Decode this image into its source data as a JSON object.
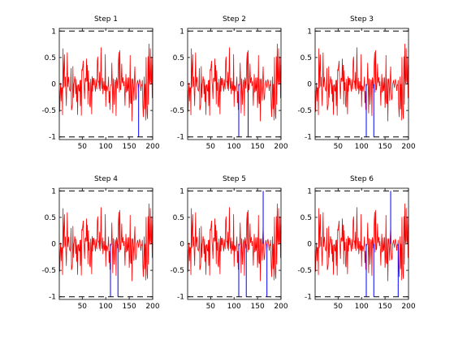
{
  "colors": {
    "background": "#ffffff",
    "signal": "#ff0000",
    "selected": "#0000ff",
    "bound": "#000000",
    "axes": "#000000"
  },
  "chart_data": [
    {
      "type": "line",
      "title": "Step 1",
      "xlim": [
        1,
        200
      ],
      "ylim": [
        -1.05,
        1.05
      ],
      "xticks": [
        50,
        100,
        150,
        200
      ],
      "yticks": [
        -1,
        -0.5,
        0,
        0.5,
        1
      ],
      "bounds": [
        1,
        -1
      ],
      "highlighted": [
        {
          "x": 170,
          "y": -1
        }
      ]
    },
    {
      "type": "line",
      "title": "Step 2",
      "xlim": [
        1,
        200
      ],
      "ylim": [
        -1.05,
        1.05
      ],
      "xticks": [
        50,
        100,
        150,
        200
      ],
      "yticks": [
        -1,
        -0.5,
        0,
        0.5,
        1
      ],
      "bounds": [
        1,
        -1
      ],
      "highlighted": [
        {
          "x": 110,
          "y": -1
        },
        {
          "x": 130,
          "y": -1
        }
      ]
    },
    {
      "type": "line",
      "title": "Step 3",
      "xlim": [
        1,
        200
      ],
      "ylim": [
        -1.05,
        1.05
      ],
      "xticks": [
        50,
        100,
        150,
        200
      ],
      "yticks": [
        -1,
        -0.5,
        0,
        0.5,
        1
      ],
      "bounds": [
        1,
        -1
      ],
      "highlighted": [
        {
          "x": 110,
          "y": -1
        },
        {
          "x": 126,
          "y": -1
        }
      ]
    },
    {
      "type": "line",
      "title": "Step 4",
      "xlim": [
        1,
        200
      ],
      "ylim": [
        -1.05,
        1.05
      ],
      "xticks": [
        50,
        100,
        150,
        200
      ],
      "yticks": [
        -1,
        -0.5,
        0,
        0.5,
        1
      ],
      "bounds": [
        1,
        -1
      ],
      "highlighted": [
        {
          "x": 110,
          "y": -1
        },
        {
          "x": 126,
          "y": -1
        }
      ]
    },
    {
      "type": "line",
      "title": "Step 5",
      "xlim": [
        1,
        200
      ],
      "ylim": [
        -1.05,
        1.05
      ],
      "xticks": [
        50,
        100,
        150,
        200
      ],
      "yticks": [
        -1,
        -0.5,
        0,
        0.5,
        1
      ],
      "bounds": [
        1,
        -1
      ],
      "highlighted": [
        {
          "x": 110,
          "y": -1
        },
        {
          "x": 126,
          "y": -1
        },
        {
          "x": 162,
          "y": 1
        },
        {
          "x": 170,
          "y": -1
        }
      ]
    },
    {
      "type": "line",
      "title": "Step 6",
      "xlim": [
        1,
        200
      ],
      "ylim": [
        -1.05,
        1.05
      ],
      "xticks": [
        50,
        100,
        150,
        200
      ],
      "yticks": [
        -1,
        -0.5,
        0,
        0.5,
        1
      ],
      "bounds": [
        1,
        -1
      ],
      "highlighted": [
        {
          "x": 110,
          "y": -1
        },
        {
          "x": 126,
          "y": -1
        },
        {
          "x": 162,
          "y": 1
        },
        {
          "x": 178,
          "y": -1
        }
      ]
    }
  ]
}
